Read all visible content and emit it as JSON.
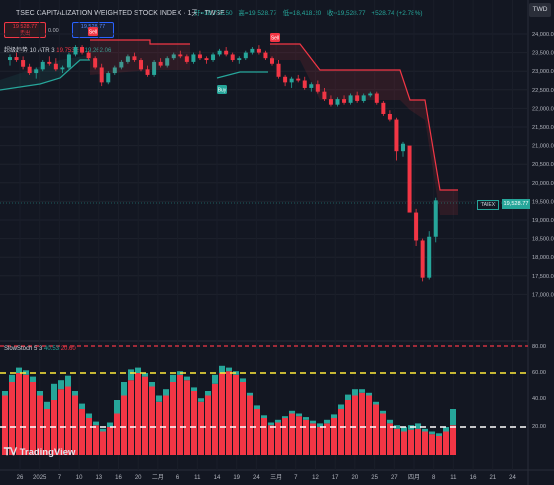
{
  "header": {
    "title": "TSEC CAPITALIZATION WEIGHTED STOCK INDEX · 1天 · TWSE",
    "open": "开=18,772.50",
    "high": "高=19,528.77",
    "low": "低=18,418.20",
    "close": "收=19,528.77",
    "change": "+528.74 (+2.78%)",
    "currency": "TWD"
  },
  "order_panel": {
    "sell_price": "19,528.77",
    "sell_label": "卖出",
    "mid_value": "0.00",
    "buy_price": "19,528.77",
    "buy_label": "买入"
  },
  "indicator": {
    "label": "超级趋势 10 ATR 3",
    "value1": "19,753.80",
    "value2": "19,262.06"
  },
  "stoch": {
    "label": "SlowStoch 5 3",
    "k": "40.53",
    "d": "20.60"
  },
  "price_axis": [
    "24,000.00",
    "23,500.00",
    "23,000.00",
    "22,500.00",
    "22,000.00",
    "21,500.00",
    "21,000.00",
    "20,500.00",
    "20,000.00",
    "19,500.00",
    "19,000.00",
    "18,500.00",
    "18,000.00",
    "17,500.00",
    "17,000.00"
  ],
  "stoch_axis": [
    "80.00",
    "60.00",
    "40.00",
    "20.00"
  ],
  "x_axis": [
    "26",
    "2025",
    "7",
    "10",
    "13",
    "16",
    "20",
    "二月",
    "6",
    "11",
    "14",
    "19",
    "24",
    "三月",
    "7",
    "12",
    "17",
    "20",
    "25",
    "27",
    "四月",
    "8",
    "11",
    "16",
    "21",
    "24"
  ],
  "price_tag": "19,528.77",
  "symbol_tag": "TAIEX",
  "signal_labels": {
    "sell": "Sell",
    "buy": "Buy"
  },
  "logo": "TradingView",
  "colors": {
    "up": "#26a69a",
    "down": "#f23645",
    "bg": "#131722",
    "yellow_line": "#ffeb3b"
  }
}
